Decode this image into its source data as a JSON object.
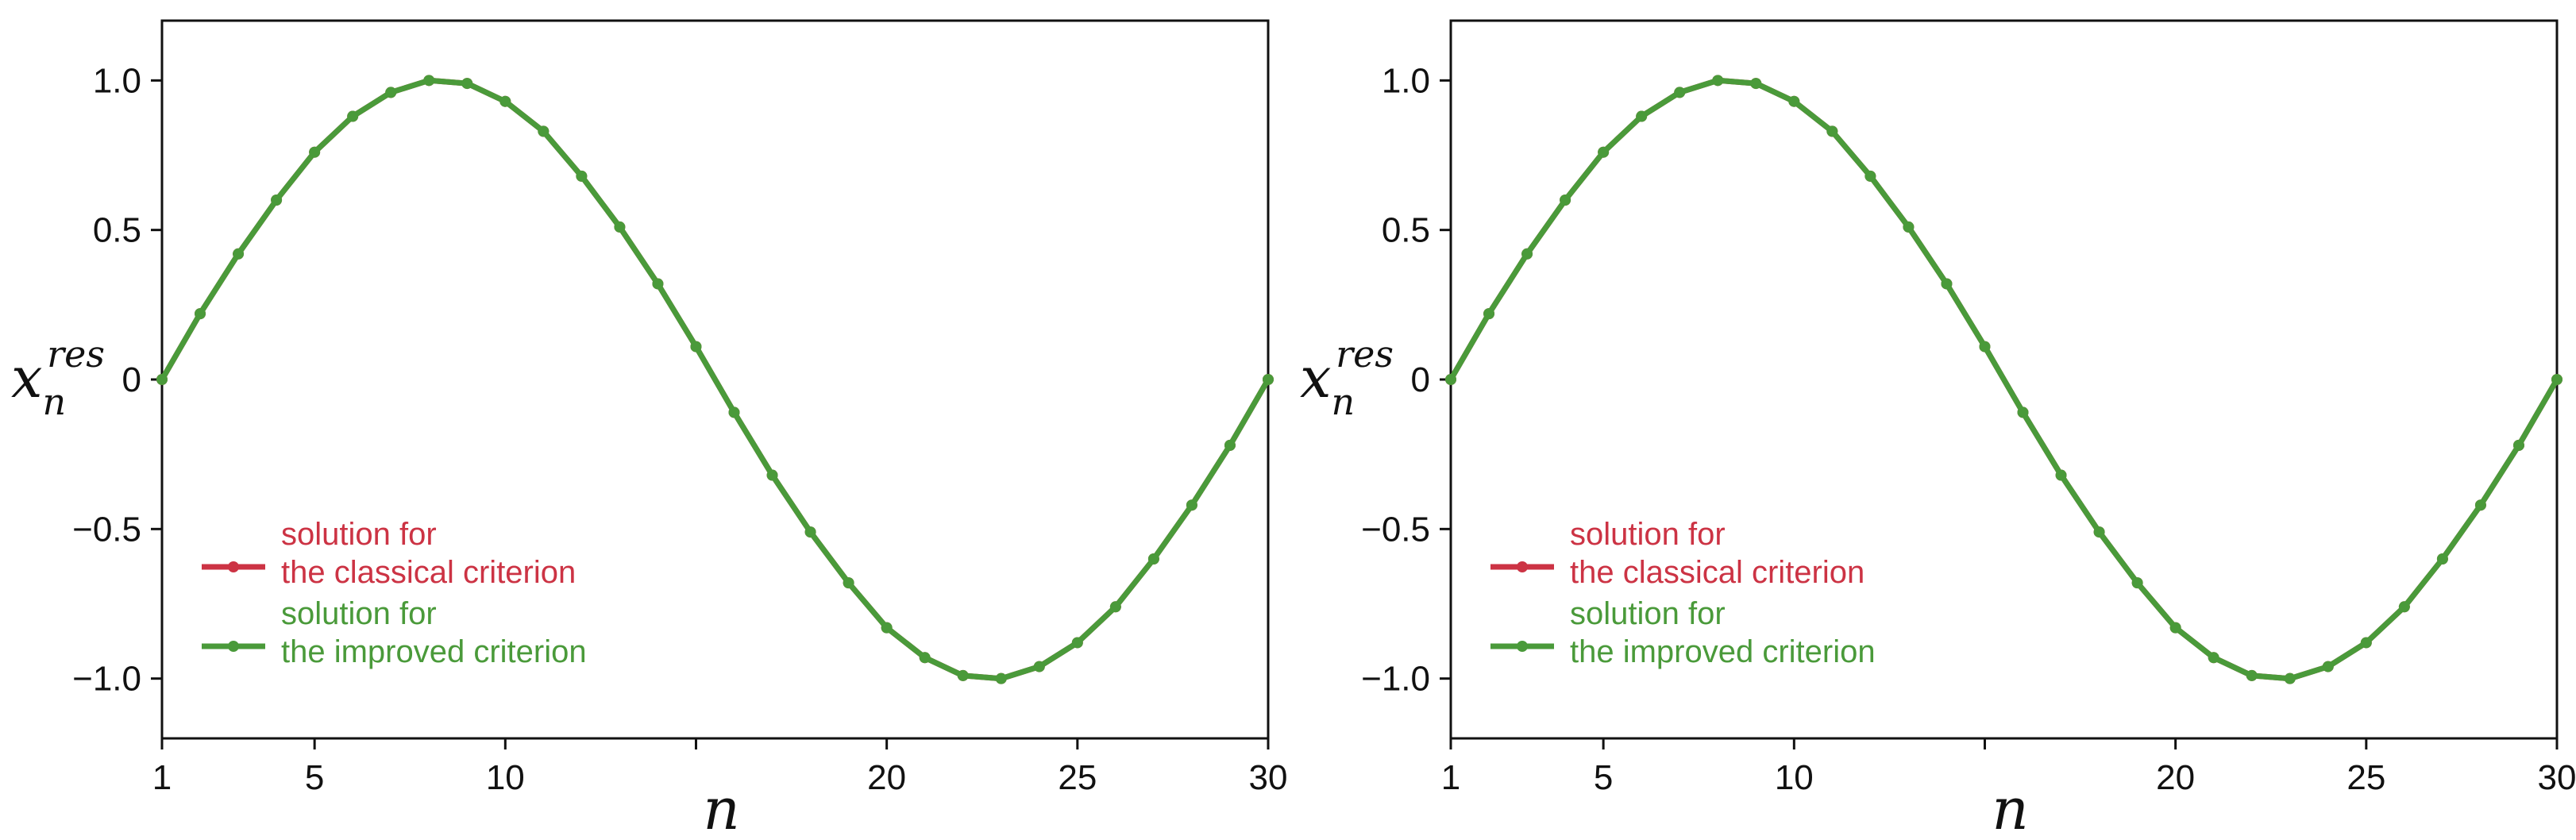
{
  "colors": {
    "classical": "#cc3344",
    "improved": "#4a9a3a",
    "axis": "#111111"
  },
  "chart_data": [
    {
      "type": "line",
      "xlabel": "n",
      "ylabel": {
        "base": "x",
        "sub": "n",
        "sup": "res"
      },
      "xlim": [
        1,
        30
      ],
      "ylim": [
        -1.2,
        1.2
      ],
      "xticks": [
        1,
        5,
        10,
        15,
        20,
        25,
        30
      ],
      "xtick_labels": [
        "1",
        "5",
        "10",
        "",
        "20",
        "25",
        "30"
      ],
      "yticks": [
        1.0,
        0.5,
        0,
        -0.5,
        -1.0
      ],
      "ytick_labels": [
        "1.0",
        "0.5",
        "0",
        "−0.5",
        "−1.0"
      ],
      "grid": false,
      "legend_position": "lower-left",
      "x": [
        1,
        2,
        3,
        4,
        5,
        6,
        7,
        8,
        9,
        10,
        11,
        12,
        13,
        14,
        15,
        16,
        17,
        18,
        19,
        20,
        21,
        22,
        23,
        24,
        25,
        26,
        27,
        28,
        29,
        30
      ],
      "series": [
        {
          "name_lines": [
            "solution for",
            "the classical criterion"
          ],
          "color_key": "classical",
          "values": [
            0.0,
            0.22,
            0.42,
            0.6,
            0.76,
            0.88,
            0.96,
            1.0,
            0.99,
            0.93,
            0.83,
            0.68,
            0.51,
            0.32,
            0.11,
            -0.11,
            -0.32,
            -0.51,
            -0.68,
            -0.83,
            -0.93,
            -0.99,
            -1.0,
            -0.96,
            -0.88,
            -0.76,
            -0.6,
            -0.42,
            -0.22,
            0.0
          ]
        },
        {
          "name_lines": [
            "solution for",
            "the improved criterion"
          ],
          "color_key": "improved",
          "values": [
            0.0,
            0.22,
            0.42,
            0.6,
            0.76,
            0.88,
            0.96,
            1.0,
            0.99,
            0.93,
            0.83,
            0.68,
            0.51,
            0.32,
            0.11,
            -0.11,
            -0.32,
            -0.51,
            -0.68,
            -0.83,
            -0.93,
            -0.99,
            -1.0,
            -0.96,
            -0.88,
            -0.76,
            -0.6,
            -0.42,
            -0.22,
            0.0
          ]
        }
      ]
    },
    {
      "type": "line",
      "xlabel": "n",
      "ylabel": {
        "base": "x",
        "sub": "n",
        "sup": "res"
      },
      "xlim": [
        1,
        30
      ],
      "ylim": [
        -1.2,
        1.2
      ],
      "xticks": [
        1,
        5,
        10,
        15,
        20,
        25,
        30
      ],
      "xtick_labels": [
        "1",
        "5",
        "10",
        "",
        "20",
        "25",
        "30"
      ],
      "yticks": [
        1.0,
        0.5,
        0,
        -0.5,
        -1.0
      ],
      "ytick_labels": [
        "1.0",
        "0.5",
        "0",
        "−0.5",
        "−1.0"
      ],
      "grid": false,
      "legend_position": "lower-left",
      "x": [
        1,
        2,
        3,
        4,
        5,
        6,
        7,
        8,
        9,
        10,
        11,
        12,
        13,
        14,
        15,
        16,
        17,
        18,
        19,
        20,
        21,
        22,
        23,
        24,
        25,
        26,
        27,
        28,
        29,
        30
      ],
      "series": [
        {
          "name_lines": [
            "solution for",
            "the classical criterion"
          ],
          "color_key": "classical",
          "values": [
            0.0,
            0.22,
            0.42,
            0.6,
            0.76,
            0.88,
            0.96,
            1.0,
            0.99,
            0.93,
            0.83,
            0.68,
            0.51,
            0.32,
            0.11,
            -0.11,
            -0.32,
            -0.51,
            -0.68,
            -0.83,
            -0.93,
            -0.99,
            -1.0,
            -0.96,
            -0.88,
            -0.76,
            -0.6,
            -0.42,
            -0.22,
            0.0
          ]
        },
        {
          "name_lines": [
            "solution for",
            "the improved criterion"
          ],
          "color_key": "improved",
          "values": [
            0.0,
            0.22,
            0.42,
            0.6,
            0.76,
            0.88,
            0.96,
            1.0,
            0.99,
            0.93,
            0.83,
            0.68,
            0.51,
            0.32,
            0.11,
            -0.11,
            -0.32,
            -0.51,
            -0.68,
            -0.83,
            -0.93,
            -0.99,
            -1.0,
            -0.96,
            -0.88,
            -0.76,
            -0.6,
            -0.42,
            -0.22,
            0.0
          ]
        }
      ]
    }
  ]
}
